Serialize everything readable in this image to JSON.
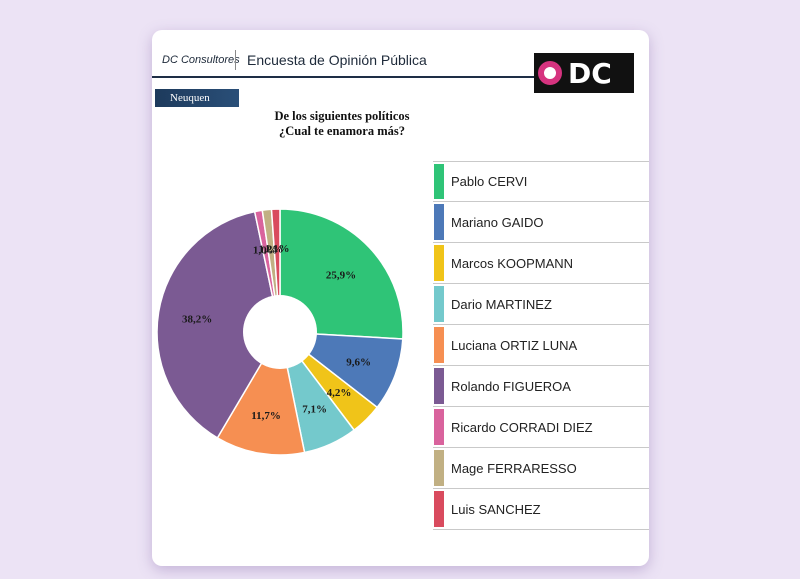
{
  "header": {
    "brand": "DC Consultores",
    "title": "Encuesta de Opinión Pública",
    "logo_text": "DC"
  },
  "region_label": "Neuquen",
  "question": {
    "line1": "De los siguientes políticos",
    "line2": "¿Cual te enamora más?"
  },
  "colors": {
    "background": "#ece3f5",
    "card": "#ffffff",
    "header_rule": "#1e2e46",
    "logo_ring": "#d6337f"
  },
  "chart_data": {
    "type": "pie",
    "donut": true,
    "start_angle_deg": 0,
    "direction": "clockwise",
    "categories": [
      "Pablo CERVI",
      "Mariano GAIDO",
      "Marcos KOOPMANN",
      "Dario MARTINEZ",
      "Luciana ORTIZ LUNA",
      "Rolando FIGUEROA",
      "Ricardo CORRADI DIEZ",
      "Mage FERRARESSO",
      "Luis SANCHEZ"
    ],
    "values": [
      25.9,
      9.6,
      4.2,
      7.1,
      11.7,
      38.2,
      1.0,
      1.2,
      1.1
    ],
    "labels": [
      "25,9%",
      "9,6%",
      "4,2%",
      "7,1%",
      "11,7%",
      "38,2%",
      "1,0%",
      "1,2%",
      "1,1%"
    ],
    "colors": [
      "#2fc477",
      "#4d79b8",
      "#f0c419",
      "#74c9cc",
      "#f68f52",
      "#7b5a93",
      "#d9639d",
      "#c1b083",
      "#d94b5e"
    ],
    "legend_position": "right"
  }
}
